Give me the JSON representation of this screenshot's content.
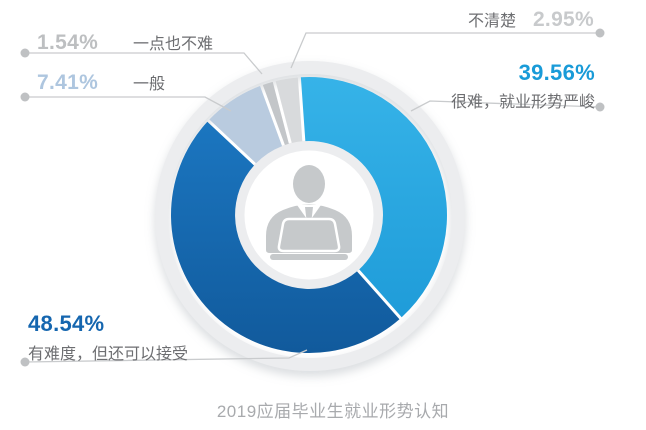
{
  "title": "2019应届毕业生就业形势认知",
  "chart_data": {
    "type": "pie",
    "subtype": "donut",
    "title": "2019应届毕业生就业形势认知",
    "start_angle_deg": -4,
    "direction": "clockwise",
    "units": "%",
    "total": 100,
    "legend_position": "callout-labels",
    "center_icon": "person-at-laptop-icon",
    "slices": [
      {
        "label": "很难，就业形势严峻",
        "value": 39.56,
        "pct_text": "39.56%",
        "color": "#29a8e0",
        "color2": "#1f9cd9",
        "color1": "#36b3e8",
        "pct_color": "#199bd8"
      },
      {
        "label": "有难度，但还可以接受",
        "value": 48.54,
        "pct_text": "48.54%",
        "color": "#1465ad",
        "color2": "#115a9c",
        "color1": "#1b76c0",
        "pct_color": "#1566af"
      },
      {
        "label": "一般",
        "value": 7.41,
        "pct_text": "7.41%",
        "color": "#b9cbdf",
        "pct_color": "#aec6df"
      },
      {
        "label": "一点也不难",
        "value": 1.54,
        "pct_text": "1.54%",
        "color": "#c3c6c9",
        "pct_color": "#bdbfc1"
      },
      {
        "label": "不清楚",
        "value": 2.95,
        "pct_text": "2.95%",
        "color": "#d8dadc",
        "pct_color": "#c8cacc"
      }
    ],
    "colors": {
      "leader_line": "#c9cbcd",
      "leader_dot": "#bfc1c3",
      "rim": "#ecedef",
      "icon": "#c6c9cb",
      "label_text": "#6d6e71",
      "title_text": "#a8aaad"
    }
  }
}
